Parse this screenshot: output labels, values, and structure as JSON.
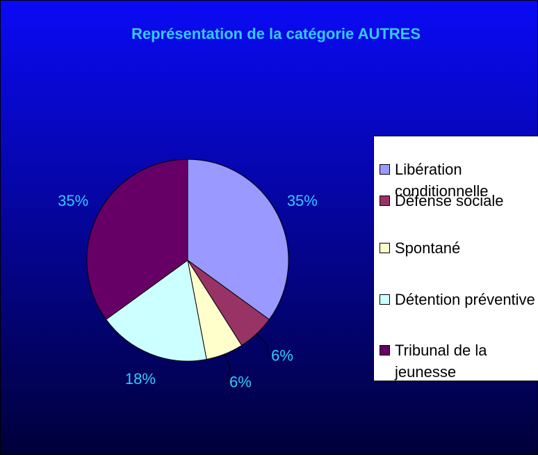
{
  "chart_data": {
    "type": "pie",
    "title": "Représentation de la catégorie AUTRES",
    "categories": [
      "Libération conditionnelle",
      "Défense sociale",
      "Spontané",
      "Détention préventive",
      "Tribunal de la jeunesse"
    ],
    "values": [
      35,
      6,
      6,
      18,
      35
    ],
    "value_labels": [
      "35%",
      "6%",
      "6%",
      "18%",
      "35%"
    ],
    "colors": [
      "#9999ff",
      "#993366",
      "#ffffcc",
      "#ccffff",
      "#660066"
    ],
    "legend": "right"
  }
}
